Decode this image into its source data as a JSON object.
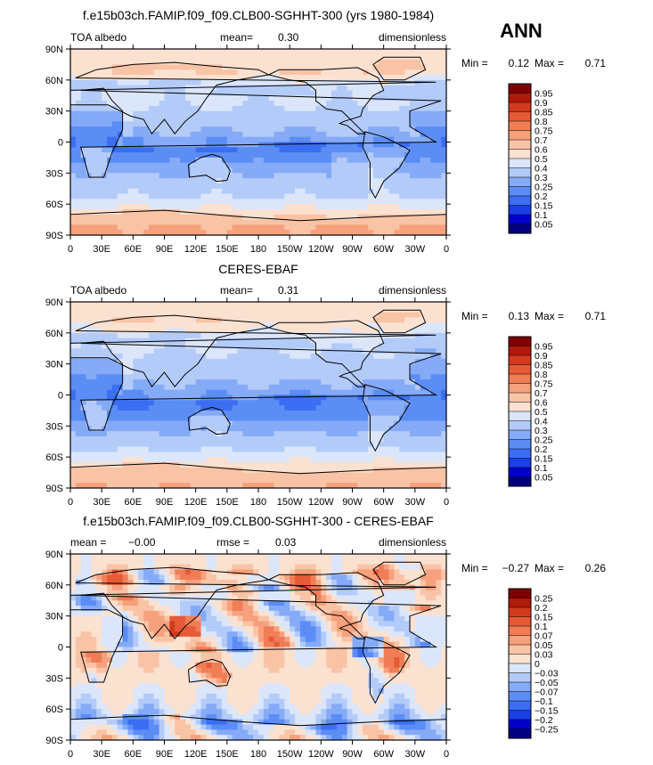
{
  "season": "ANN",
  "colors": {
    "abs_levels": [
      "#000080",
      "#0000cc",
      "#1a3fe6",
      "#3b6ef2",
      "#5b8df5",
      "#85aaf7",
      "#b3cbf9",
      "#dbe6fb",
      "#fbe1d0",
      "#f9c3a6",
      "#f6a07d",
      "#f07d56",
      "#e65a36",
      "#d23b1e",
      "#b01a0a",
      "#800000"
    ],
    "diff_levels": [
      "#000080",
      "#0000cc",
      "#1a3fe6",
      "#3b6ef2",
      "#5b8df5",
      "#85aaf7",
      "#b3cbf9",
      "#dbe6fb",
      "#fbe1d0",
      "#f9c3a6",
      "#f6a07d",
      "#f07d56",
      "#e65a36",
      "#d23b1e",
      "#b01a0a",
      "#800000"
    ],
    "land": "#000000"
  },
  "chart_data": [
    {
      "type": "heatmap",
      "title": "f.e15b03ch.FAMIP.f09_f09.CLB00-SGHHT-300 (yrs 1980-1984)",
      "variable": "TOA albedo",
      "mean_label": "mean=",
      "mean_value": "0.30",
      "units": "dimensionless",
      "min_label": "Min =",
      "min_value": "0.12",
      "max_label": "Max =",
      "max_value": "0.71",
      "yticks": [
        "90N",
        "60N",
        "30N",
        "0",
        "30S",
        "60S",
        "90S"
      ],
      "xticks": [
        "0",
        "30E",
        "60E",
        "90E",
        "120E",
        "150E",
        "180",
        "150W",
        "120W",
        "90W",
        "60W",
        "30W",
        "0"
      ],
      "colorbar_labels": [
        "0.95",
        "0.9",
        "0.85",
        "0.8",
        "0.75",
        "0.7",
        "0.6",
        "0.5",
        "0.4",
        "0.3",
        "0.25",
        "0.2",
        "0.15",
        "0.1",
        "0.05"
      ],
      "lat_profile": [
        0.55,
        0.58,
        0.35,
        0.33,
        0.25,
        0.18,
        0.24,
        0.32,
        0.4,
        0.6,
        0.64
      ],
      "field": "model"
    },
    {
      "type": "heatmap",
      "title": "CERES-EBAF",
      "variable": "TOA albedo",
      "mean_label": "mean=",
      "mean_value": "0.31",
      "units": "dimensionless",
      "min_label": "Min =",
      "min_value": "0.13",
      "max_label": "Max =",
      "max_value": "0.71",
      "yticks": [
        "90N",
        "60N",
        "30N",
        "0",
        "30S",
        "60S",
        "90S"
      ],
      "xticks": [
        "0",
        "30E",
        "60E",
        "90E",
        "120E",
        "150E",
        "180",
        "150W",
        "120W",
        "90W",
        "60W",
        "30W",
        "0"
      ],
      "colorbar_labels": [
        "0.95",
        "0.9",
        "0.85",
        "0.8",
        "0.75",
        "0.7",
        "0.6",
        "0.5",
        "0.4",
        "0.3",
        "0.25",
        "0.2",
        "0.15",
        "0.1",
        "0.05"
      ],
      "lat_profile": [
        0.55,
        0.52,
        0.36,
        0.3,
        0.24,
        0.18,
        0.22,
        0.3,
        0.4,
        0.58,
        0.62
      ],
      "field": "obs"
    },
    {
      "type": "heatmap",
      "title": "f.e15b03ch.FAMIP.f09_f09.CLB00-SGHHT-300 - CERES-EBAF",
      "variable": "",
      "mean_label": "mean =",
      "mean_value": "−0.00",
      "rmse_label": "rmse =",
      "rmse_value": "0.03",
      "units": "dimensionless",
      "min_label": "Min =",
      "min_value": "−0.27",
      "max_label": "Max =",
      "max_value": "0.26",
      "yticks": [
        "90N",
        "60N",
        "30N",
        "0",
        "30S",
        "60S",
        "90S"
      ],
      "xticks": [
        "0",
        "30E",
        "60E",
        "90E",
        "120E",
        "150E",
        "180",
        "150W",
        "120W",
        "90W",
        "60W",
        "30W",
        "0"
      ],
      "colorbar_labels": [
        "0.25",
        "0.2",
        "0.15",
        "0.1",
        "0.07",
        "0.05",
        "0.03",
        "0",
        "−0.03",
        "−0.05",
        "−0.07",
        "−0.1",
        "−0.15",
        "−0.2",
        "−0.25"
      ],
      "lat_profile": [
        0.0,
        0.03,
        0.01,
        0.0,
        0.0,
        0.01,
        0.02,
        0.01,
        -0.01,
        -0.05,
        0.0
      ],
      "field": "diff"
    }
  ]
}
